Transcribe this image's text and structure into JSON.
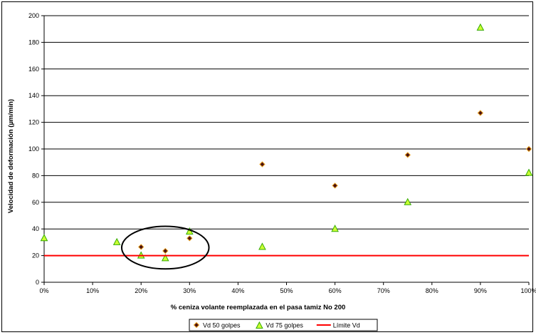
{
  "chart_data": {
    "type": "scatter",
    "xlabel": "% ceniza volante reemplazada en el pasa tamiz No 200",
    "ylabel": "Velocidad de deformación (µm/min)",
    "xlim": [
      0,
      1
    ],
    "ylim": [
      0,
      200
    ],
    "x_ticks": [
      "0%",
      "10%",
      "20%",
      "30%",
      "40%",
      "50%",
      "60%",
      "70%",
      "80%",
      "90%",
      "100%"
    ],
    "y_ticks": [
      "0",
      "20",
      "40",
      "60",
      "80",
      "100",
      "120",
      "140",
      "160",
      "180",
      "200"
    ],
    "grid": "horizontal",
    "legend_position": "bottom",
    "series": [
      {
        "name": "Vd 50 golpes",
        "marker": "diamond",
        "color": "#4a1010",
        "edge_color": "#e8a020",
        "x": [
          0.2,
          0.25,
          0.3,
          0.45,
          0.6,
          0.75,
          0.9,
          1.0
        ],
        "y": [
          26.5,
          23.5,
          33,
          88.5,
          72.5,
          95.5,
          127,
          100
        ]
      },
      {
        "name": "Vd 75 golpes",
        "marker": "triangle",
        "color": "#ccff33",
        "edge_color": "#33aa00",
        "x": [
          0.0,
          0.15,
          0.2,
          0.25,
          0.3,
          0.45,
          0.6,
          0.75,
          0.9,
          1.0
        ],
        "y": [
          33,
          30,
          20,
          18,
          38,
          26.5,
          40,
          60,
          191,
          82
        ]
      },
      {
        "name": "Límite Vd",
        "marker": "line",
        "color": "#ff0000",
        "x": [
          0,
          1
        ],
        "y": [
          20,
          20
        ]
      }
    ],
    "annotations": [
      {
        "type": "ellipse",
        "cx": 0.25,
        "cy": 26,
        "rx": 0.09,
        "ry": 16
      }
    ]
  }
}
